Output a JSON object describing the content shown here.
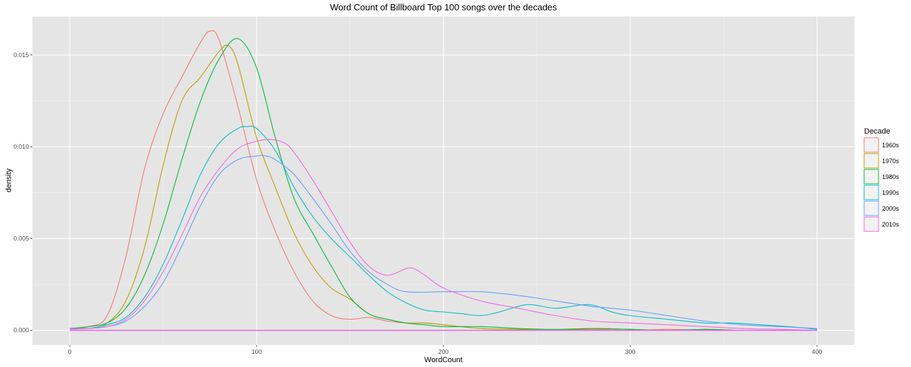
{
  "chart_data": {
    "type": "line",
    "title": "Word Count of Billboard Top 100 songs over the decades",
    "xlabel": "WordCount",
    "ylabel": "density",
    "xlim": [
      -20,
      420
    ],
    "ylim": [
      -0.0008,
      0.0171
    ],
    "xticks": [
      0,
      100,
      200,
      300,
      400
    ],
    "xtick_labels": [
      "0",
      "100",
      "200",
      "300",
      "400"
    ],
    "yticks": [
      0,
      0.005,
      0.01,
      0.015
    ],
    "ytick_labels": [
      "0.000",
      "0.005",
      "0.010",
      "0.015"
    ],
    "grid": true,
    "legend": {
      "title": "Decade",
      "placement": "right"
    },
    "series": [
      {
        "name": "1960s",
        "color": "#F8766D",
        "x": [
          0,
          10,
          20,
          30,
          40,
          50,
          60,
          70,
          75,
          80,
          90,
          100,
          110,
          120,
          130,
          140,
          150,
          160,
          170,
          180,
          190,
          200,
          220,
          240,
          260,
          280,
          300,
          320,
          340,
          360,
          380,
          400
        ],
        "y": [
          0.0001,
          0.0002,
          0.0008,
          0.004,
          0.0088,
          0.0118,
          0.0138,
          0.0157,
          0.0163,
          0.0158,
          0.0122,
          0.0082,
          0.0054,
          0.0032,
          0.0016,
          0.0008,
          0.0006,
          0.0007,
          0.0005,
          0.0004,
          0.0004,
          0.0003,
          0.0001,
          5e-05,
          0.0,
          5e-05,
          0.0,
          5e-05,
          0.0,
          0.0,
          0.0,
          0.0
        ]
      },
      {
        "name": "1970s",
        "color": "#B79F00",
        "x": [
          0,
          10,
          20,
          30,
          40,
          50,
          60,
          70,
          80,
          85,
          90,
          100,
          110,
          120,
          130,
          140,
          150,
          160,
          170,
          180,
          190,
          200,
          220,
          240,
          260,
          280,
          300,
          320,
          340,
          360,
          380,
          400
        ],
        "y": [
          0.0001,
          0.0001,
          0.0004,
          0.0016,
          0.0045,
          0.009,
          0.0125,
          0.0138,
          0.0152,
          0.0155,
          0.0145,
          0.0105,
          0.0078,
          0.0053,
          0.0035,
          0.0023,
          0.0017,
          0.0009,
          0.0006,
          0.0004,
          0.0004,
          0.0003,
          0.0001,
          5e-05,
          0.0,
          0.0001,
          5e-05,
          0.0,
          5e-05,
          0.0,
          0.0,
          0.0
        ]
      },
      {
        "name": "1980s",
        "color": "#00BA38",
        "x": [
          0,
          10,
          20,
          30,
          40,
          50,
          60,
          70,
          80,
          90,
          100,
          110,
          120,
          130,
          140,
          150,
          160,
          170,
          180,
          190,
          200,
          220,
          240,
          260,
          280,
          300,
          320,
          340,
          360,
          380,
          400
        ],
        "y": [
          0.0001,
          0.0002,
          0.0004,
          0.0012,
          0.003,
          0.0058,
          0.0093,
          0.0125,
          0.0148,
          0.0159,
          0.0143,
          0.0105,
          0.0072,
          0.0053,
          0.0035,
          0.0018,
          0.0009,
          0.0006,
          0.0004,
          0.0003,
          0.0002,
          0.0002,
          0.0001,
          5e-05,
          0.0001,
          5e-05,
          0.0,
          5e-05,
          0.0,
          0.0,
          0.0
        ]
      },
      {
        "name": "1990s",
        "color": "#00BFC4",
        "x": [
          0,
          10,
          20,
          30,
          40,
          50,
          60,
          70,
          80,
          90,
          95,
          100,
          110,
          120,
          130,
          140,
          150,
          160,
          170,
          180,
          190,
          200,
          210,
          220,
          230,
          245,
          260,
          278,
          290,
          300,
          320,
          340,
          355,
          370,
          385,
          400
        ],
        "y": [
          0.0001,
          0.0001,
          0.0003,
          0.0007,
          0.0018,
          0.0036,
          0.006,
          0.0085,
          0.0102,
          0.011,
          0.0111,
          0.011,
          0.0098,
          0.0078,
          0.0062,
          0.005,
          0.004,
          0.003,
          0.0021,
          0.0015,
          0.0011,
          0.001,
          0.0009,
          0.0008,
          0.001,
          0.0014,
          0.0012,
          0.0014,
          0.001,
          0.0008,
          0.0006,
          0.0004,
          0.0004,
          0.0003,
          0.0002,
          5e-05
        ]
      },
      {
        "name": "2000s",
        "color": "#619CFF",
        "x": [
          0,
          10,
          20,
          30,
          40,
          50,
          60,
          70,
          80,
          90,
          100,
          105,
          110,
          120,
          130,
          140,
          150,
          160,
          170,
          180,
          200,
          220,
          240,
          260,
          280,
          300,
          320,
          340,
          360,
          380,
          400
        ],
        "y": [
          0.0001,
          0.0001,
          0.0002,
          0.0005,
          0.0013,
          0.0026,
          0.0046,
          0.0068,
          0.0085,
          0.0093,
          0.0095,
          0.0095,
          0.0093,
          0.0085,
          0.0072,
          0.0058,
          0.0043,
          0.0032,
          0.0025,
          0.0021,
          0.0021,
          0.0021,
          0.0019,
          0.0016,
          0.0013,
          0.0011,
          0.0008,
          0.0005,
          0.0003,
          0.0002,
          0.0001
        ]
      },
      {
        "name": "2010s",
        "color": "#F564E3",
        "x": [
          0,
          10,
          20,
          30,
          40,
          50,
          60,
          70,
          80,
          90,
          100,
          108,
          115,
          120,
          130,
          140,
          150,
          160,
          170,
          182,
          190,
          200,
          220,
          240,
          260,
          280,
          300,
          320,
          340,
          360,
          380,
          400
        ],
        "y": [
          5e-05,
          0.0001,
          0.0002,
          0.0006,
          0.0016,
          0.0032,
          0.0052,
          0.0073,
          0.0088,
          0.0099,
          0.0103,
          0.0104,
          0.0102,
          0.0097,
          0.0082,
          0.0065,
          0.0048,
          0.0035,
          0.003,
          0.0034,
          0.003,
          0.0023,
          0.0016,
          0.0012,
          0.0008,
          0.0005,
          0.0004,
          0.0003,
          0.0002,
          0.0001,
          5e-05,
          0.0
        ]
      }
    ]
  }
}
